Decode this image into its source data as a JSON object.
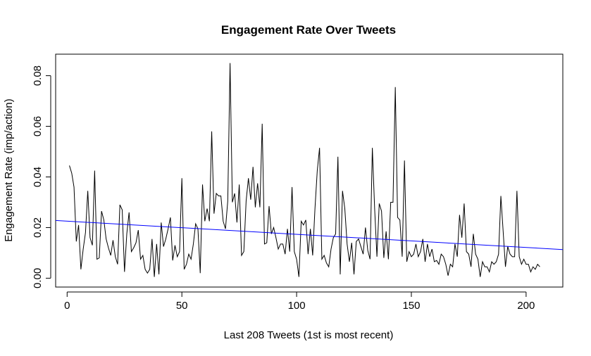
{
  "chart_data": {
    "type": "line",
    "title": "Engagement Rate Over Tweets",
    "xlabel": "Last 208 Tweets (1st is most recent)",
    "ylabel": "Engagement Rate (imp/action)",
    "xlim": [
      -5,
      216
    ],
    "ylim": [
      -0.0035,
      0.0885
    ],
    "x_ticks": [
      0,
      50,
      100,
      150,
      200
    ],
    "x_tick_labels": [
      "0",
      "50",
      "100",
      "150",
      "200"
    ],
    "y_ticks": [
      0.0,
      0.02,
      0.04,
      0.06,
      0.08
    ],
    "y_tick_labels": [
      "0.00",
      "0.02",
      "0.04",
      "0.06",
      "0.08"
    ],
    "grid": false,
    "colors": {
      "series": "#000000",
      "trend": "#0000ff"
    },
    "series": [
      {
        "x_start": 1,
        "values": [
          0.0445,
          0.0415,
          0.036,
          0.0145,
          0.021,
          0.0035,
          0.0115,
          0.018,
          0.0345,
          0.016,
          0.013,
          0.0425,
          0.0075,
          0.008,
          0.0265,
          0.023,
          0.0155,
          0.012,
          0.009,
          0.015,
          0.0085,
          0.0055,
          0.029,
          0.027,
          0.0025,
          0.0175,
          0.026,
          0.0105,
          0.012,
          0.014,
          0.019,
          0.0075,
          0.009,
          0.0035,
          0.002,
          0.0035,
          0.0155,
          0.0005,
          0.0135,
          0.0015,
          0.022,
          0.0125,
          0.0155,
          0.0195,
          0.024,
          0.007,
          0.013,
          0.0085,
          0.0105,
          0.0395,
          0.0035,
          0.0055,
          0.0095,
          0.0075,
          0.0135,
          0.0215,
          0.0195,
          0.002,
          0.037,
          0.0225,
          0.0275,
          0.0225,
          0.058,
          0.0255,
          0.0335,
          0.0325,
          0.0325,
          0.0225,
          0.0195,
          0.0305,
          0.085,
          0.03,
          0.0335,
          0.022,
          0.037,
          0.009,
          0.0105,
          0.0305,
          0.0395,
          0.031,
          0.044,
          0.028,
          0.0375,
          0.028,
          0.061,
          0.0135,
          0.014,
          0.0285,
          0.0175,
          0.02,
          0.016,
          0.0115,
          0.0135,
          0.0135,
          0.0095,
          0.0195,
          0.0105,
          0.036,
          0.0105,
          0.0075,
          0.0005,
          0.0225,
          0.021,
          0.023,
          0.0095,
          0.0195,
          0.009,
          0.0275,
          0.0425,
          0.0515,
          0.0075,
          0.009,
          0.006,
          0.0045,
          0.0115,
          0.016,
          0.0175,
          0.048,
          0.0015,
          0.0345,
          0.0275,
          0.0135,
          0.0065,
          0.014,
          0.0015,
          0.0145,
          0.0155,
          0.0125,
          0.0095,
          0.02,
          0.011,
          0.0075,
          0.0515,
          0.0275,
          0.0085,
          0.0295,
          0.0265,
          0.008,
          0.0185,
          0.0075,
          0.03,
          0.03,
          0.0755,
          0.024,
          0.023,
          0.0085,
          0.0465,
          0.0065,
          0.0105,
          0.0085,
          0.0095,
          0.0135,
          0.0085,
          0.0105,
          0.0155,
          0.0065,
          0.0135,
          0.0085,
          0.0115,
          0.0065,
          0.007,
          0.0055,
          0.0095,
          0.0085,
          0.0055,
          0.001,
          0.0055,
          0.0045,
          0.0135,
          0.0085,
          0.025,
          0.016,
          0.0295,
          0.0105,
          0.0095,
          0.0045,
          0.0175,
          0.0095,
          0.0075,
          0.0005,
          0.0065,
          0.0045,
          0.0045,
          0.0025,
          0.0065,
          0.0055,
          0.0065,
          0.0095,
          0.0325,
          0.0185,
          0.0045,
          0.0125,
          0.0095,
          0.0085,
          0.0085,
          0.0345,
          0.0085,
          0.0055,
          0.0075,
          0.0055,
          0.0055,
          0.0025,
          0.0045,
          0.0035,
          0.0055,
          0.0045
        ]
      }
    ],
    "trend_line": {
      "x": [
        -5,
        216
      ],
      "y": [
        0.0228,
        0.0113
      ]
    }
  }
}
